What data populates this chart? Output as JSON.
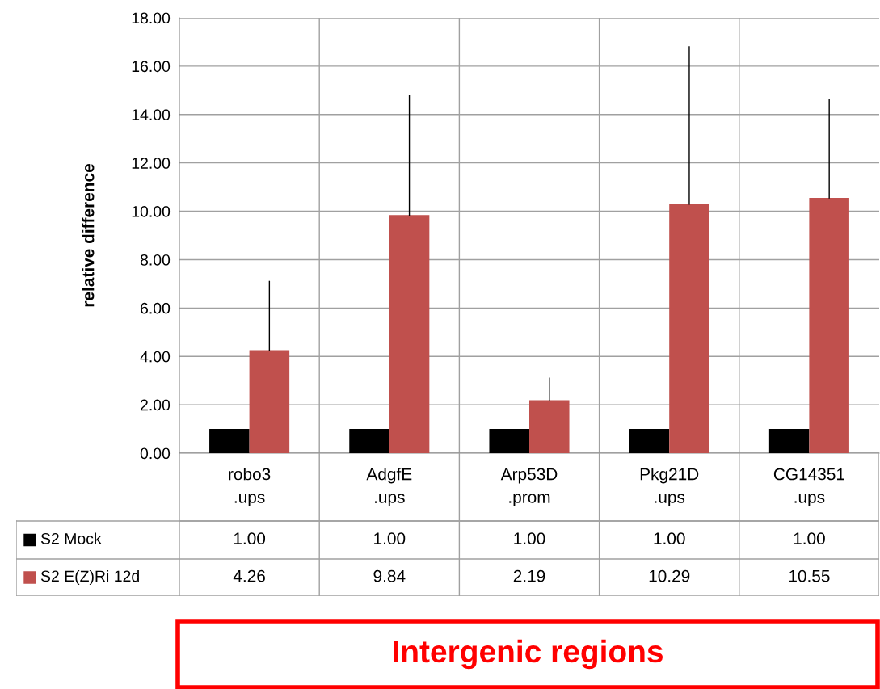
{
  "chart_data": {
    "type": "bar",
    "ylabel": "relative difference",
    "categories": [
      "robo3\n.ups",
      "AdgfE\n.ups",
      "Arp53D\n.prom",
      "Pkg21D\n.ups",
      "CG14351\n.ups"
    ],
    "series": [
      {
        "name": "S2 Mock",
        "color": "#000000",
        "values": [
          1.0,
          1.0,
          1.0,
          1.0,
          1.0
        ],
        "value_labels": [
          "1.00",
          "1.00",
          "1.00",
          "1.00",
          "1.00"
        ]
      },
      {
        "name": "S2 E(Z)Ri 12d",
        "color": "#c0504d",
        "values": [
          4.26,
          9.84,
          2.19,
          10.29,
          10.55
        ],
        "value_labels": [
          "4.26",
          "9.84",
          "2.19",
          "10.29",
          "10.55"
        ],
        "errors": [
          [
            4.26,
            7.1
          ],
          [
            9.84,
            14.8
          ],
          [
            2.19,
            3.1
          ],
          [
            10.29,
            16.8
          ],
          [
            10.55,
            14.6
          ]
        ]
      }
    ],
    "ylim": [
      0,
      18
    ],
    "yticks": [
      {
        "value": 0,
        "label": "0.00"
      },
      {
        "value": 2,
        "label": "2.00"
      },
      {
        "value": 4,
        "label": "4.00"
      },
      {
        "value": 6,
        "label": "6.00"
      },
      {
        "value": 8,
        "label": "8.00"
      },
      {
        "value": 10,
        "label": "10.00"
      },
      {
        "value": 12,
        "label": "12.00"
      },
      {
        "value": 14,
        "label": "14.00"
      },
      {
        "value": 16,
        "label": "16.00"
      },
      {
        "value": 18,
        "label": "18.00"
      }
    ],
    "grid": "y",
    "legend": "left",
    "annotations": [
      "Intergenic regions"
    ]
  }
}
